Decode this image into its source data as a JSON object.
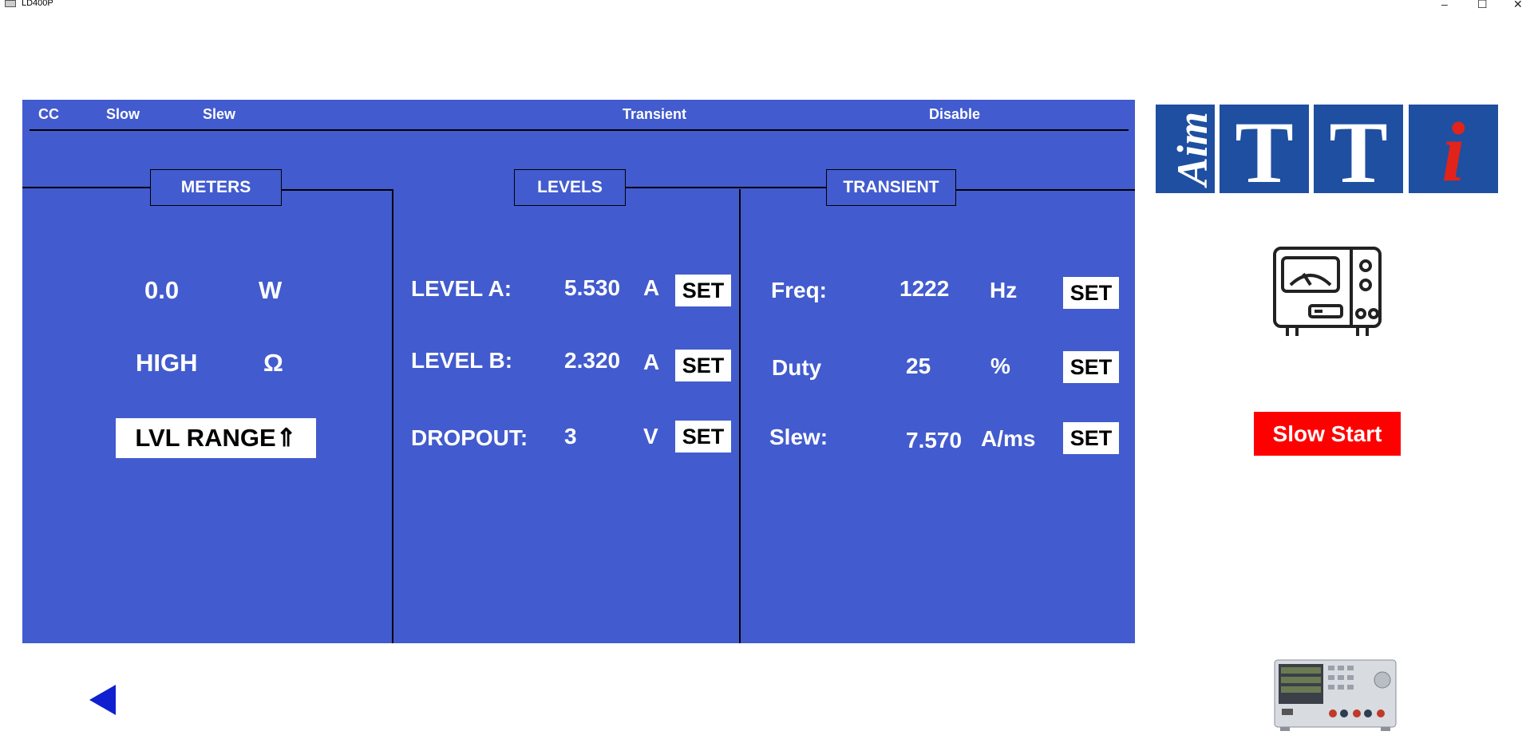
{
  "window": {
    "title": "LD400P",
    "minimize_glyph": "–",
    "maximize_glyph": "☐",
    "close_glyph": "✕"
  },
  "status_bar": {
    "mode": "CC",
    "speed": "Slow",
    "slew": "Slew",
    "transient": "Transient",
    "input": "Disable"
  },
  "sections": {
    "meters": "METERS",
    "levels": "LEVELS",
    "transient": "TRANSIENT"
  },
  "meters": {
    "power_value": "0.0",
    "power_unit": "W",
    "resistance_value": "HIGH",
    "resistance_unit": "Ω",
    "range_button": "LVL RANGE⇑"
  },
  "levels": {
    "level_a": {
      "label": "LEVEL A:",
      "value": "5.530",
      "unit": "A",
      "set": "SET"
    },
    "level_b": {
      "label": "LEVEL B:",
      "value": "2.320",
      "unit": "A",
      "set": "SET"
    },
    "dropout": {
      "label": "DROPOUT:",
      "value": "3",
      "unit": "V",
      "set": "SET"
    }
  },
  "transient": {
    "freq": {
      "label": "Freq:",
      "value": "1222",
      "unit": "Hz",
      "set": "SET"
    },
    "duty": {
      "label": "Duty",
      "value": "25",
      "unit": "%",
      "set": "SET"
    },
    "slew": {
      "label": "Slew:",
      "value": "7.570",
      "unit": "A/ms",
      "set": "SET"
    }
  },
  "logo": {
    "tile1": "Aim",
    "tile2": "T",
    "tile3": "T",
    "tile4": "i",
    "tile_color": "#1f4fa0",
    "i_color": "#e2231a"
  },
  "slow_start": {
    "label": "Slow Start",
    "color": "#ff0000"
  },
  "colors": {
    "panel": "#425bce",
    "arrow": "#1020d0"
  }
}
